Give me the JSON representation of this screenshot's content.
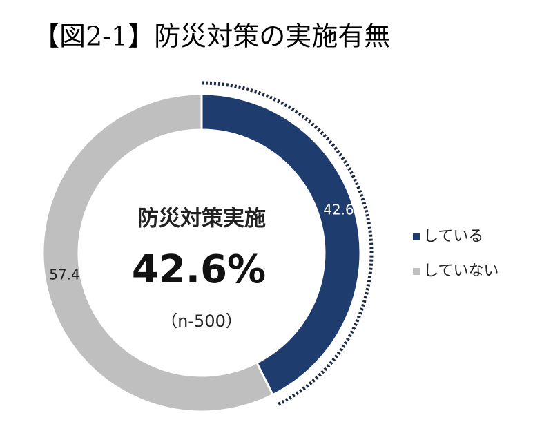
{
  "chart_data": {
    "type": "donut",
    "title": "【図2-1】防災対策の実施有無",
    "categories": [
      "している",
      "していない"
    ],
    "values": [
      42.6,
      57.4
    ],
    "colors": [
      "#1f3c6e",
      "#bfbfbf"
    ],
    "center_label": "防災対策実施",
    "center_value": "42.6%",
    "center_note": "（n-500）",
    "highlight": 0,
    "legend": "right"
  }
}
